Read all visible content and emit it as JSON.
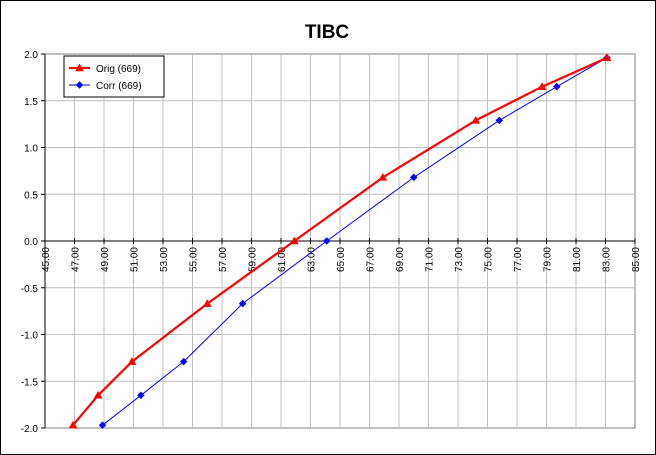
{
  "chart_data": {
    "type": "line",
    "title": "TIBC",
    "xlabel": "",
    "ylabel": "",
    "xlim": [
      45,
      85
    ],
    "ylim": [
      -2.0,
      2.0
    ],
    "x_ticks": [
      "45.00",
      "47.00",
      "49.00",
      "51.00",
      "53.00",
      "55.00",
      "57.00",
      "59.00",
      "61.00",
      "63.00",
      "65.00",
      "67.00",
      "69.00",
      "71.00",
      "73.00",
      "75.00",
      "77.00",
      "79.00",
      "81.00",
      "83.00",
      "85.00"
    ],
    "y_ticks": [
      "2.0",
      "1.5",
      "1.0",
      "0.5",
      "0.0",
      "-0.5",
      "-1.0",
      "-1.5",
      "-2.0"
    ],
    "grid": true,
    "legend_position": "top-left",
    "series": [
      {
        "name": "Orig (669)",
        "color": "#ff0000",
        "marker": "triangle",
        "points": [
          [
            46.9,
            -1.97
          ],
          [
            48.6,
            -1.65
          ],
          [
            50.9,
            -1.29
          ],
          [
            56.0,
            -0.67
          ],
          [
            61.9,
            0.0
          ],
          [
            67.9,
            0.68
          ],
          [
            74.2,
            1.29
          ],
          [
            78.7,
            1.65
          ],
          [
            83.1,
            1.96
          ]
        ]
      },
      {
        "name": "Corr (669)",
        "color": "#0000ff",
        "marker": "diamond",
        "points": [
          [
            48.9,
            -1.97
          ],
          [
            51.5,
            -1.65
          ],
          [
            54.4,
            -1.29
          ],
          [
            58.4,
            -0.67
          ],
          [
            64.1,
            0.0
          ],
          [
            70.0,
            0.68
          ],
          [
            75.8,
            1.29
          ],
          [
            79.7,
            1.65
          ],
          [
            83.1,
            1.96
          ]
        ]
      }
    ]
  }
}
